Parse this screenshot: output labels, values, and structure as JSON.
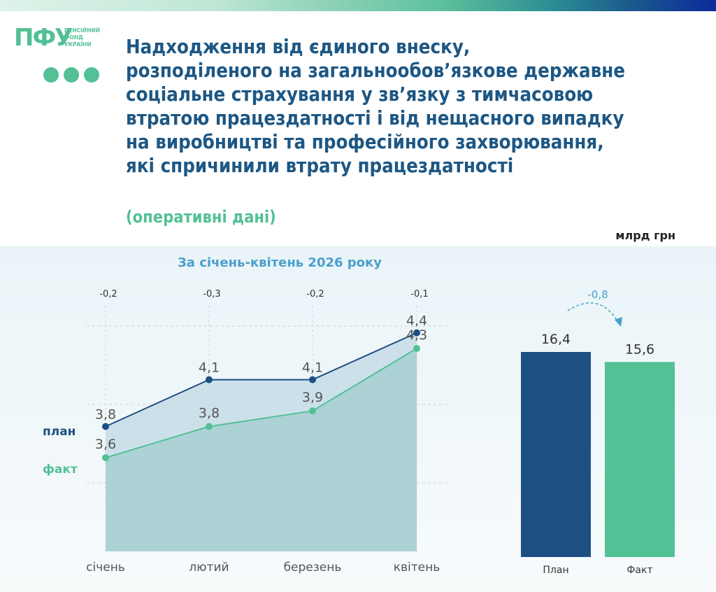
{
  "logo": {
    "mark": "ПФУ",
    "text_lines": [
      "ПЕНСІЙНИЙ",
      "ФОНД",
      "УКРАЇНИ"
    ]
  },
  "title_lines": [
    "Надходження від єдиного внеску,",
    "розподіленого на загальнообов’язкове державне",
    "соціальне страхування у зв’язку з тимчасовою",
    "втратою працездатності і від нещасного випадку",
    "на виробництві та професійного захворювання,",
    "які спричинили втрату працездатності"
  ],
  "subtitle": "(оперативні дані)",
  "unit": "млрд грн",
  "period": "За січень-квітень 2026 року",
  "legend": {
    "plan": "план",
    "fact": "факт"
  },
  "colors": {
    "plan": "#1d4f82",
    "fact": "#53c095",
    "area_plan": "#c8dde8",
    "area_fact": "#a9d0d3",
    "diff_text": "#333333",
    "total_diff": "#4a9fcc"
  },
  "chart_data": [
    {
      "type": "line",
      "categories": [
        "січень",
        "лютий",
        "березень",
        "квітень"
      ],
      "series": [
        {
          "name": "план",
          "values": [
            3.8,
            4.1,
            4.1,
            4.4
          ]
        },
        {
          "name": "факт",
          "values": [
            3.6,
            3.8,
            3.9,
            4.3
          ]
        }
      ],
      "data_labels": {
        "план": [
          "3,8",
          "4,1",
          "4,1",
          "4,4"
        ],
        "факт": [
          "3,6",
          "3,8",
          "3,9",
          "4,3"
        ]
      },
      "differences": [
        "-0,2",
        "-0,3",
        "-0,2",
        "-0,1"
      ],
      "ylim": [
        3.0,
        4.6
      ],
      "grid": "horizontal dashed"
    },
    {
      "type": "bar",
      "categories": [
        "План",
        "Факт"
      ],
      "values": [
        16.4,
        15.6
      ],
      "value_labels": [
        "16,4",
        "15,6"
      ],
      "difference_label": "-0,8",
      "ylim": [
        0,
        16.4
      ]
    }
  ]
}
